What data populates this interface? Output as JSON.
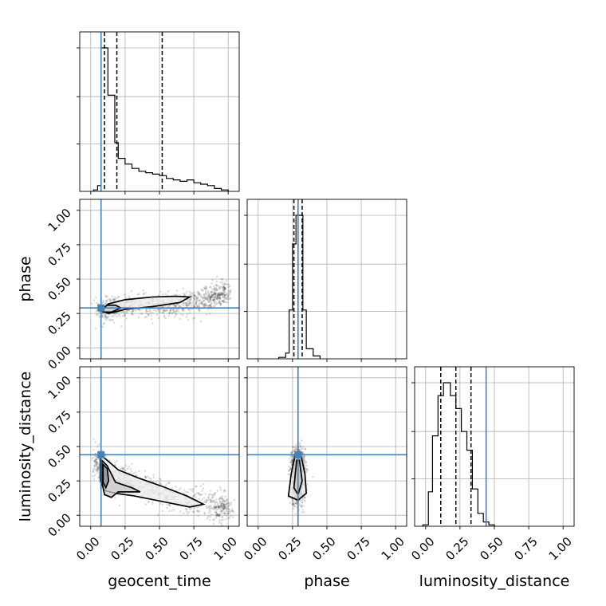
{
  "chart_data": {
    "type": "corner",
    "parameters": [
      {
        "name": "geocent_time",
        "label": "geocent_time",
        "range": [
          -0.08,
          1.08
        ],
        "truth": 0.075,
        "quantiles": [
          0.1,
          0.19,
          0.52
        ]
      },
      {
        "name": "phase",
        "label": "phase",
        "range": [
          -0.08,
          1.08
        ],
        "truth": 0.29,
        "quantiles": [
          0.26,
          0.29,
          0.32
        ]
      },
      {
        "name": "luminosity_distance",
        "label": "luminosity_distance",
        "range": [
          -0.08,
          1.08
        ],
        "truth": 0.44,
        "quantiles": [
          0.11,
          0.22,
          0.33
        ]
      }
    ],
    "ticks": {
      "values": [
        0.0,
        0.25,
        0.5,
        0.75,
        1.0
      ],
      "labels": [
        "0.00",
        "0.25",
        "0.50",
        "0.75",
        "1.00"
      ]
    },
    "truth_color": "#4682b4",
    "grid": true,
    "histograms": [
      {
        "param": "geocent_time",
        "bins": [
          [
            0.02,
            0.05,
            0.01
          ],
          [
            0.05,
            0.075,
            0.04
          ],
          [
            0.075,
            0.1,
            1.0
          ],
          [
            0.1,
            0.125,
            1.0
          ],
          [
            0.125,
            0.15,
            0.67
          ],
          [
            0.15,
            0.175,
            0.67
          ],
          [
            0.175,
            0.2,
            0.34
          ],
          [
            0.2,
            0.25,
            0.23
          ],
          [
            0.25,
            0.3,
            0.19
          ],
          [
            0.3,
            0.35,
            0.16
          ],
          [
            0.35,
            0.4,
            0.14
          ],
          [
            0.4,
            0.45,
            0.13
          ],
          [
            0.45,
            0.5,
            0.12
          ],
          [
            0.5,
            0.55,
            0.11
          ],
          [
            0.55,
            0.6,
            0.09
          ],
          [
            0.6,
            0.65,
            0.08
          ],
          [
            0.65,
            0.7,
            0.07
          ],
          [
            0.7,
            0.75,
            0.08
          ],
          [
            0.75,
            0.8,
            0.06
          ],
          [
            0.8,
            0.85,
            0.05
          ],
          [
            0.85,
            0.9,
            0.04
          ],
          [
            0.9,
            0.95,
            0.02
          ],
          [
            0.95,
            1.0,
            0.01
          ]
        ]
      },
      {
        "param": "phase",
        "bins": [
          [
            0.15,
            0.2,
            0.01
          ],
          [
            0.2,
            0.225,
            0.04
          ],
          [
            0.225,
            0.25,
            0.34
          ],
          [
            0.25,
            0.275,
            0.8
          ],
          [
            0.275,
            0.3,
            1.0
          ],
          [
            0.3,
            0.325,
            1.0
          ],
          [
            0.325,
            0.35,
            0.34
          ],
          [
            0.35,
            0.4,
            0.07
          ],
          [
            0.4,
            0.45,
            0.02
          ]
        ]
      },
      {
        "param": "luminosity_distance",
        "bins": [
          [
            -0.02,
            0.02,
            0.01
          ],
          [
            0.02,
            0.05,
            0.24
          ],
          [
            0.05,
            0.09,
            0.63
          ],
          [
            0.09,
            0.13,
            0.91
          ],
          [
            0.13,
            0.18,
            1.0
          ],
          [
            0.18,
            0.22,
            0.91
          ],
          [
            0.22,
            0.26,
            0.82
          ],
          [
            0.26,
            0.3,
            0.66
          ],
          [
            0.3,
            0.34,
            0.53
          ],
          [
            0.34,
            0.38,
            0.26
          ],
          [
            0.38,
            0.42,
            0.09
          ],
          [
            0.42,
            0.46,
            0.03
          ],
          [
            0.46,
            0.5,
            0.01
          ]
        ]
      }
    ],
    "scatter_2d": [
      {
        "x": "geocent_time",
        "y": "phase",
        "trend": [
          [
            0.05,
            0.27
          ],
          [
            0.3,
            0.29
          ],
          [
            0.6,
            0.31
          ],
          [
            0.85,
            0.36
          ],
          [
            1.0,
            0.4
          ]
        ],
        "spread": 0.045,
        "contours": [
          [
            [
              0.07,
              0.27
            ],
            [
              0.13,
              0.32
            ],
            [
              0.25,
              0.35
            ],
            [
              0.45,
              0.37
            ],
            [
              0.62,
              0.375
            ],
            [
              0.72,
              0.37
            ],
            [
              0.65,
              0.33
            ],
            [
              0.45,
              0.3
            ],
            [
              0.25,
              0.28
            ],
            [
              0.13,
              0.25
            ],
            [
              0.07,
              0.27
            ]
          ],
          [
            [
              0.08,
              0.28
            ],
            [
              0.12,
              0.31
            ],
            [
              0.18,
              0.31
            ],
            [
              0.22,
              0.29
            ],
            [
              0.15,
              0.26
            ],
            [
              0.09,
              0.26
            ],
            [
              0.08,
              0.28
            ]
          ]
        ]
      },
      {
        "x": "geocent_time",
        "y": "luminosity_distance",
        "trend": [
          [
            0.05,
            0.4
          ],
          [
            0.1,
            0.3
          ],
          [
            0.3,
            0.22
          ],
          [
            0.6,
            0.14
          ],
          [
            0.9,
            0.07
          ],
          [
            1.0,
            0.05
          ]
        ],
        "spread": 0.055,
        "contours": [
          [
            [
              0.07,
              0.44
            ],
            [
              0.12,
              0.4
            ],
            [
              0.2,
              0.33
            ],
            [
              0.35,
              0.27
            ],
            [
              0.52,
              0.21
            ],
            [
              0.7,
              0.14
            ],
            [
              0.82,
              0.08
            ],
            [
              0.72,
              0.06
            ],
            [
              0.52,
              0.1
            ],
            [
              0.32,
              0.14
            ],
            [
              0.18,
              0.16
            ],
            [
              0.1,
              0.18
            ],
            [
              0.07,
              0.25
            ],
            [
              0.07,
              0.44
            ]
          ],
          [
            [
              0.08,
              0.4
            ],
            [
              0.12,
              0.36
            ],
            [
              0.15,
              0.3
            ],
            [
              0.18,
              0.24
            ],
            [
              0.3,
              0.2
            ],
            [
              0.36,
              0.17
            ],
            [
              0.2,
              0.17
            ],
            [
              0.15,
              0.13
            ],
            [
              0.1,
              0.15
            ],
            [
              0.08,
              0.25
            ],
            [
              0.08,
              0.4
            ]
          ],
          [
            [
              0.09,
              0.37
            ],
            [
              0.12,
              0.34
            ],
            [
              0.13,
              0.25
            ],
            [
              0.11,
              0.2
            ],
            [
              0.09,
              0.24
            ],
            [
              0.09,
              0.37
            ]
          ]
        ]
      },
      {
        "x": "phase",
        "y": "luminosity_distance",
        "trend": [
          [
            0.29,
            0.45
          ],
          [
            0.29,
            0.3
          ],
          [
            0.29,
            0.1
          ]
        ],
        "spread": 0.04,
        "contours": [
          [
            [
              0.27,
              0.44
            ],
            [
              0.31,
              0.44
            ],
            [
              0.34,
              0.3
            ],
            [
              0.35,
              0.16
            ],
            [
              0.29,
              0.11
            ],
            [
              0.22,
              0.14
            ],
            [
              0.24,
              0.3
            ],
            [
              0.27,
              0.44
            ]
          ],
          [
            [
              0.28,
              0.4
            ],
            [
              0.3,
              0.4
            ],
            [
              0.32,
              0.25
            ],
            [
              0.29,
              0.15
            ],
            [
              0.26,
              0.2
            ],
            [
              0.27,
              0.3
            ],
            [
              0.28,
              0.4
            ]
          ]
        ]
      }
    ]
  }
}
